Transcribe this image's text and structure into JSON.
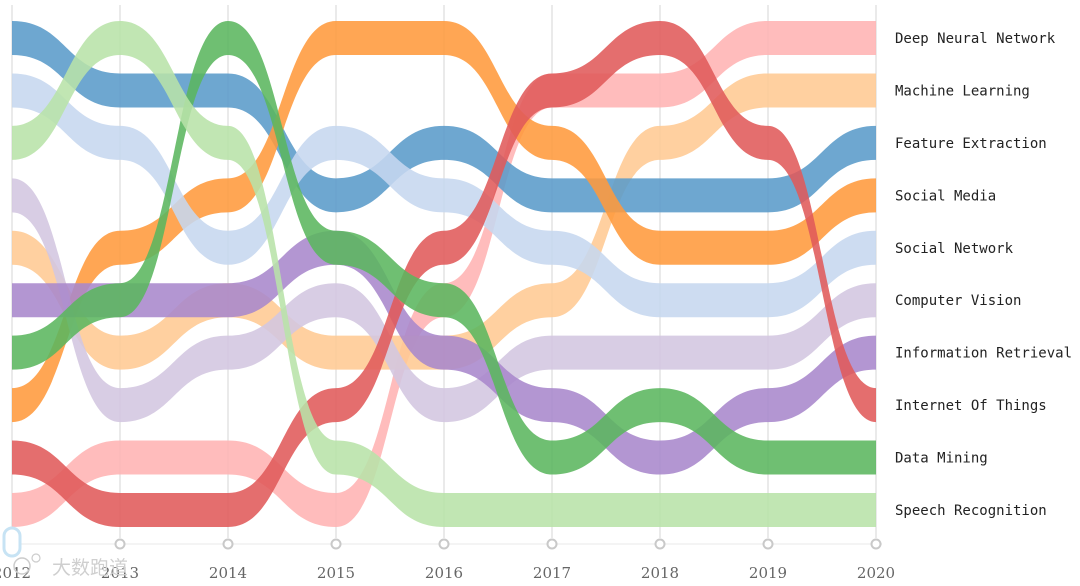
{
  "chart_data": {
    "type": "bump-area",
    "x": [
      "2012",
      "2013",
      "2014",
      "2015",
      "2016",
      "2017",
      "2018",
      "2019",
      "2020"
    ],
    "active_x_index": 0,
    "series": [
      {
        "name": "Deep Neural Network",
        "color": "#ffb3b3",
        "ranks": [
          10,
          9,
          9,
          10,
          6,
          2,
          2,
          1,
          1
        ]
      },
      {
        "name": "Machine Learning",
        "color": "#ffc993",
        "ranks": [
          5,
          7,
          6,
          7,
          7,
          6,
          3,
          2,
          2
        ]
      },
      {
        "name": "Feature Extraction",
        "color": "#5a9bc9",
        "ranks": [
          1,
          2,
          2,
          4,
          3,
          4,
          4,
          4,
          3
        ]
      },
      {
        "name": "Social Media",
        "color": "#ff9a3c",
        "ranks": [
          8,
          5,
          4,
          1,
          1,
          3,
          5,
          5,
          4
        ]
      },
      {
        "name": "Social Network",
        "color": "#c6d7ef",
        "ranks": [
          2,
          3,
          5,
          3,
          4,
          5,
          6,
          6,
          5
        ]
      },
      {
        "name": "Computer Vision",
        "color": "#d3c6e0",
        "ranks": [
          4,
          8,
          7,
          6,
          8,
          7,
          7,
          7,
          6
        ]
      },
      {
        "name": "Information Retrieval",
        "color": "#a987cc",
        "ranks": [
          6,
          6,
          6,
          5,
          7,
          8,
          9,
          8,
          7
        ]
      },
      {
        "name": "Internet Of Things",
        "color": "#e05a5a",
        "ranks": [
          9,
          10,
          10,
          8,
          5,
          2,
          1,
          3,
          8
        ]
      },
      {
        "name": "Data Mining",
        "color": "#5bb65e",
        "ranks": [
          7,
          6,
          1,
          5,
          6,
          9,
          8,
          9,
          9
        ]
      },
      {
        "name": "Speech Recognition",
        "color": "#b8e3a9",
        "ranks": [
          3,
          1,
          3,
          9,
          10,
          10,
          10,
          10,
          10
        ]
      }
    ]
  },
  "watermark": "大数跑道"
}
